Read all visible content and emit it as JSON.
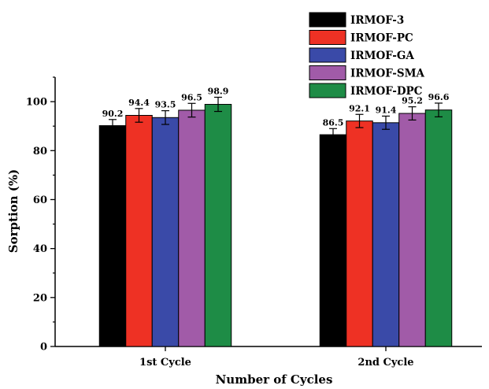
{
  "chart_data": {
    "type": "bar",
    "title": "",
    "xlabel": "Number of Cycles",
    "ylabel": "Sorption (%)",
    "ylim": [
      0,
      110
    ],
    "yticks": [
      0,
      20,
      40,
      60,
      80,
      100
    ],
    "categories": [
      "1st Cycle",
      "2nd Cycle"
    ],
    "legend_position": "top-right",
    "grid": false,
    "series": [
      {
        "name": "IRMOF-3",
        "color": "#000000",
        "values": [
          90.2,
          86.5
        ],
        "labels": [
          "90.2",
          "86.5"
        ],
        "errors": [
          2.5,
          2.5
        ]
      },
      {
        "name": "IRMOF-PC",
        "color": "#ee3124",
        "values": [
          94.4,
          92.1
        ],
        "labels": [
          "94.4",
          "92.1"
        ],
        "errors": [
          2.8,
          2.7
        ]
      },
      {
        "name": "IRMOF-GA",
        "color": "#3a4aa8",
        "values": [
          93.5,
          91.4
        ],
        "labels": [
          "93.5",
          "91.4"
        ],
        "errors": [
          2.8,
          2.7
        ]
      },
      {
        "name": "IRMOF-SMA",
        "color": "#a15ba8",
        "values": [
          96.5,
          95.2
        ],
        "labels": [
          "96.5",
          "95.2"
        ],
        "errors": [
          2.8,
          2.7
        ]
      },
      {
        "name": "IRMOF-DPC",
        "color": "#1e8c46",
        "values": [
          98.9,
          96.6
        ],
        "labels": [
          "98.9",
          "96.6"
        ],
        "errors": [
          2.9,
          2.8
        ]
      }
    ]
  }
}
